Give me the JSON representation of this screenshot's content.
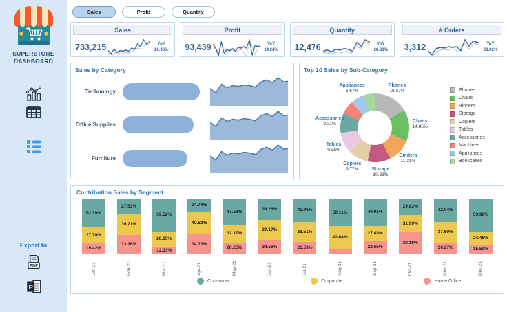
{
  "sidebar": {
    "brand_line1": "SUPERSTORE",
    "brand_line2": "DASHBOARD",
    "export_label": "Export to"
  },
  "tabs": {
    "items": [
      {
        "label": "Sales",
        "active": true
      },
      {
        "label": "Profit",
        "active": false
      },
      {
        "label": "Quantity",
        "active": false
      }
    ]
  },
  "kpis": [
    {
      "title": "Sales",
      "value": "733,215",
      "yoy_label": "YoY",
      "yoy": "20.36%",
      "spark": [
        [
          0,
          20
        ],
        [
          7,
          25
        ],
        [
          14,
          17
        ],
        [
          21,
          23
        ],
        [
          28,
          20
        ],
        [
          35,
          21
        ],
        [
          42,
          19
        ],
        [
          49,
          21
        ],
        [
          56,
          16
        ],
        [
          63,
          18
        ],
        [
          70,
          9
        ],
        [
          77,
          14
        ],
        [
          84,
          3
        ],
        [
          91,
          10
        ],
        [
          100,
          6
        ]
      ],
      "spark_prev": [
        [
          0,
          24
        ],
        [
          10,
          27
        ],
        [
          20,
          22
        ],
        [
          30,
          25
        ],
        [
          40,
          23
        ],
        [
          50,
          24
        ],
        [
          60,
          20
        ],
        [
          70,
          16
        ],
        [
          80,
          18
        ],
        [
          90,
          8
        ],
        [
          100,
          12
        ]
      ]
    },
    {
      "title": "Profit",
      "value": "93,439",
      "yoy_label": "YoY",
      "yoy": "14.24%",
      "spark": [
        [
          0,
          10
        ],
        [
          6,
          16
        ],
        [
          12,
          28
        ],
        [
          18,
          6
        ],
        [
          24,
          24
        ],
        [
          30,
          18
        ],
        [
          36,
          20
        ],
        [
          42,
          17
        ],
        [
          48,
          21
        ],
        [
          54,
          15
        ],
        [
          60,
          16
        ],
        [
          66,
          14
        ],
        [
          72,
          16
        ],
        [
          78,
          3
        ],
        [
          84,
          27
        ],
        [
          90,
          12
        ],
        [
          96,
          14
        ],
        [
          100,
          13
        ]
      ],
      "spark_prev": [
        [
          0,
          14
        ],
        [
          10,
          20
        ],
        [
          20,
          12
        ],
        [
          30,
          22
        ],
        [
          40,
          19
        ],
        [
          50,
          22
        ],
        [
          60,
          18
        ],
        [
          70,
          28
        ],
        [
          80,
          6
        ],
        [
          90,
          26
        ],
        [
          100,
          10
        ]
      ]
    },
    {
      "title": "Quantity",
      "value": "12,476",
      "yoy_label": "YoY",
      "yoy": "26.83%",
      "spark": [
        [
          0,
          21
        ],
        [
          9,
          19
        ],
        [
          18,
          22
        ],
        [
          27,
          18
        ],
        [
          36,
          19
        ],
        [
          45,
          17
        ],
        [
          54,
          18
        ],
        [
          63,
          21
        ],
        [
          72,
          7
        ],
        [
          81,
          13
        ],
        [
          90,
          3
        ],
        [
          100,
          7
        ]
      ],
      "spark_prev": [
        [
          0,
          24
        ],
        [
          10,
          23
        ],
        [
          20,
          25
        ],
        [
          30,
          22
        ],
        [
          40,
          23
        ],
        [
          50,
          21
        ],
        [
          60,
          24
        ],
        [
          70,
          12
        ],
        [
          80,
          17
        ],
        [
          90,
          7
        ],
        [
          100,
          11
        ]
      ]
    },
    {
      "title": "# Orders",
      "value": "3,312",
      "yoy_label": "YoY",
      "yoy": "28.02%",
      "spark": [
        [
          0,
          20
        ],
        [
          8,
          26
        ],
        [
          16,
          17
        ],
        [
          24,
          15
        ],
        [
          32,
          16
        ],
        [
          40,
          14
        ],
        [
          48,
          15
        ],
        [
          56,
          14
        ],
        [
          64,
          20
        ],
        [
          72,
          3
        ],
        [
          80,
          13
        ],
        [
          88,
          5
        ],
        [
          96,
          7
        ],
        [
          100,
          8
        ]
      ],
      "spark_prev": [
        [
          0,
          24
        ],
        [
          10,
          28
        ],
        [
          20,
          20
        ],
        [
          30,
          18
        ],
        [
          40,
          19
        ],
        [
          50,
          17
        ],
        [
          60,
          22
        ],
        [
          70,
          8
        ],
        [
          80,
          17
        ],
        [
          90,
          9
        ],
        [
          100,
          11
        ]
      ]
    }
  ],
  "chart_data": [
    {
      "type": "bar",
      "title": "Sales by Category",
      "orientation": "horizontal",
      "categories": [
        "Technology",
        "Office Supplies",
        "Furniture"
      ],
      "values": [
        100,
        92,
        84
      ],
      "note": "relative bar lengths; each category row also shows a monthly trend area sparkline",
      "trend_points": [
        [
          0,
          16
        ],
        [
          8,
          22
        ],
        [
          16,
          10
        ],
        [
          24,
          15
        ],
        [
          32,
          12
        ],
        [
          40,
          13
        ],
        [
          48,
          11
        ],
        [
          56,
          12
        ],
        [
          64,
          14
        ],
        [
          72,
          7
        ],
        [
          80,
          4
        ],
        [
          88,
          8
        ],
        [
          96,
          1
        ],
        [
          104,
          7
        ],
        [
          110,
          6
        ]
      ]
    },
    {
      "type": "pie",
      "donut": true,
      "title": "Top 10 Sales by Sub-Category",
      "legend_position": "right",
      "slices": [
        {
          "label": "Phones",
          "pct": 16.37,
          "color": "#b8b8b8",
          "labeled": true
        },
        {
          "label": "Chairs",
          "pct": 14.85,
          "color": "#6abf5f",
          "labeled": true
        },
        {
          "label": "Binders",
          "pct": 11.31,
          "color": "#f2a65a",
          "labeled": true
        },
        {
          "label": "Storage",
          "pct": 10.83,
          "color": "#c25983",
          "labeled": true
        },
        {
          "label": "Copiers",
          "pct": 9.77,
          "color": "#e3d0a9",
          "labeled": true
        },
        {
          "label": "Tables",
          "pct": 9.46,
          "color": "#e9c9e5",
          "labeled": true
        },
        {
          "label": "Accessories",
          "pct": 9.31,
          "color": "#6aa9a3",
          "labeled": true
        },
        {
          "label": "Machines",
          "pct": 6.44,
          "color": "#f4837d",
          "labeled": false
        },
        {
          "label": "Appliances",
          "pct": 6.67,
          "color": "#a4c8e9",
          "labeled": true
        },
        {
          "label": "Bookcases",
          "pct": 4.99,
          "color": "#a5d89b",
          "labeled": false
        }
      ]
    },
    {
      "type": "bar",
      "subtype": "stacked_100",
      "title": "Contribution Sales by Segment",
      "categories": [
        "Jan-21",
        "Feb-21",
        "Mar-21",
        "Apr-21",
        "May-21",
        "Jun-21",
        "Jul-21",
        "Aug-21",
        "Sep-21",
        "Oct-21",
        "Nov-21",
        "Dec-21"
      ],
      "series": [
        {
          "name": "Consumer",
          "color": "#6aa9a3",
          "values": [
            52.79,
            27.53,
            59.52,
            24.74,
            47.58,
            38.26,
            41.96,
            50.11,
            49.91,
            29.82,
            42.04,
            59.92
          ]
        },
        {
          "name": "Corporate",
          "color": "#ecc84e",
          "values": [
            27.79,
            39.21,
            28.15,
            40.53,
            32.17,
            37.17,
            36.51,
            40.68,
            27.43,
            31.99,
            37.69,
            24.48
          ]
        },
        {
          "name": "Home Office",
          "color": "#f7948e",
          "values": [
            19.42,
            33.26,
            12.33,
            34.73,
            20.25,
            24.56,
            21.53,
            9.21,
            22.65,
            38.19,
            20.27,
            15.59
          ]
        }
      ],
      "label_threshold_pct": 10,
      "legend_position": "bottom"
    }
  ],
  "colors": {
    "sidebar_bg": "#d9e8f6",
    "accent_blue": "#2e75b6",
    "kpi_blue": "#33608f",
    "steel_bar": "#8cb2d9",
    "panel_border": "#bdd7ee"
  }
}
